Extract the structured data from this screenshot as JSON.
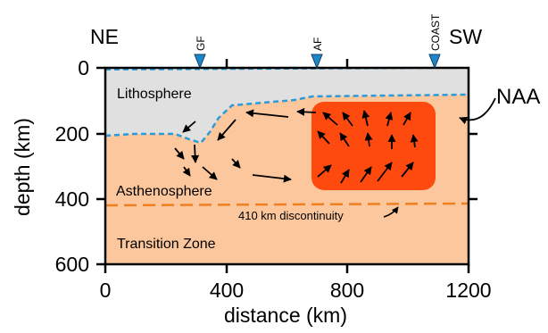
{
  "figure": {
    "corner_left": "NE",
    "corner_right": "SW",
    "markers": [
      "GF",
      "AF",
      "COAST"
    ],
    "marker_color": "#1f86c8",
    "regions": {
      "lithosphere": "Lithosphere",
      "asthenosphere": "Asthenosphere",
      "transition": "Transition Zone",
      "discontinuity": "410 km discontinuity",
      "anomaly": "NAA"
    },
    "colors": {
      "lithosphere": "#e0e0e0",
      "asthenosphere": "#fcc79d",
      "anomaly": "#ff4a0f",
      "lab_line": "#2b9ad6",
      "discontinuity_line": "#f07f1f"
    },
    "x_axis": {
      "label": "distance (km)",
      "ticks": [
        "0",
        "400",
        "800",
        "1200"
      ]
    },
    "y_axis": {
      "label": "depth (km)",
      "ticks": [
        "0",
        "200",
        "400",
        "600"
      ]
    }
  }
}
